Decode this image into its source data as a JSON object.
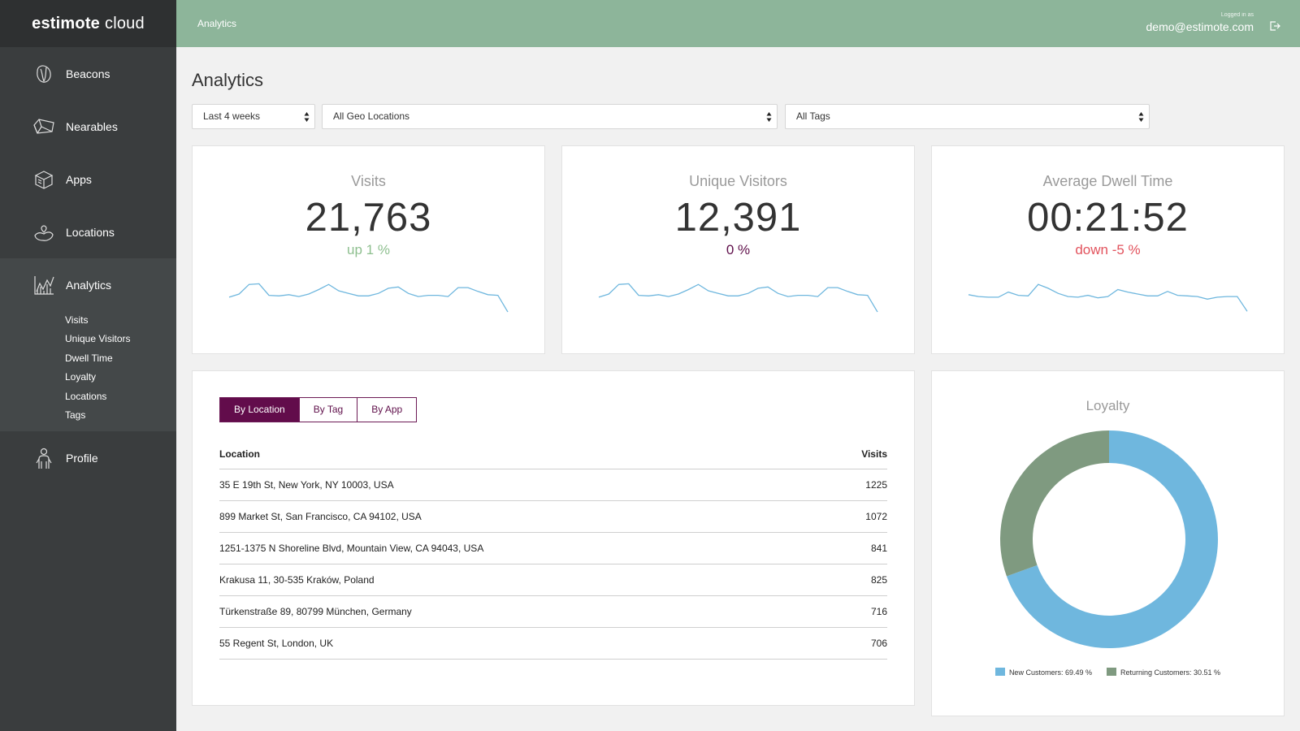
{
  "app": {
    "logo_bold": "estimote",
    "logo_rest": "cloud"
  },
  "sidebar": {
    "items": [
      {
        "label": "Beacons",
        "icon": "beacon-icon"
      },
      {
        "label": "Nearables",
        "icon": "nearable-icon"
      },
      {
        "label": "Apps",
        "icon": "apps-box-icon"
      },
      {
        "label": "Locations",
        "icon": "location-hand-icon"
      },
      {
        "label": "Analytics",
        "icon": "analytics-chart-icon"
      },
      {
        "label": "Profile",
        "icon": "profile-person-icon"
      }
    ],
    "analytics_sub": [
      "Visits",
      "Unique Visitors",
      "Dwell Time",
      "Loyalty",
      "Locations",
      "Tags"
    ]
  },
  "header": {
    "breadcrumb": "Analytics",
    "logged_in_label": "Logged in as",
    "email": "demo@estimote.com"
  },
  "page": {
    "title": "Analytics"
  },
  "filters": {
    "period": "Last 4 weeks",
    "geo": "All Geo Locations",
    "tags": "All Tags"
  },
  "stats": [
    {
      "title": "Visits",
      "value": "21,763",
      "change": "up 1 %",
      "change_color": "#8ebf8f",
      "trend": [
        58,
        63,
        78,
        79,
        61,
        60,
        62,
        59,
        63,
        70,
        78,
        68,
        64,
        60,
        60,
        64,
        72,
        74,
        64,
        59,
        61,
        61,
        59,
        73,
        73,
        67,
        62,
        61,
        35
      ]
    },
    {
      "title": "Unique Visitors",
      "value": "12,391",
      "change": "0 %",
      "change_color": "#5f0f4a",
      "trend": [
        58,
        63,
        78,
        79,
        61,
        60,
        62,
        59,
        63,
        70,
        78,
        68,
        64,
        60,
        60,
        64,
        72,
        74,
        64,
        59,
        61,
        61,
        59,
        73,
        73,
        67,
        62,
        61,
        35
      ]
    },
    {
      "title": "Average Dwell Time",
      "value": "00:21:52",
      "change": "down -5 %",
      "change_color": "#e2535d",
      "trend": [
        62,
        59,
        58,
        58,
        66,
        61,
        60,
        78,
        72,
        64,
        59,
        58,
        61,
        57,
        59,
        70,
        66,
        63,
        60,
        60,
        67,
        61,
        60,
        59,
        55,
        58,
        59,
        59,
        36
      ]
    }
  ],
  "table": {
    "tabs": [
      "By Location",
      "By Tag",
      "By App"
    ],
    "active_tab": 0,
    "columns": [
      "Location",
      "Visits"
    ],
    "rows": [
      [
        "35 E 19th St, New York, NY 10003, USA",
        "1225"
      ],
      [
        "899 Market St, San Francisco, CA 94102, USA",
        "1072"
      ],
      [
        "1251-1375 N Shoreline Blvd, Mountain View, CA 94043, USA",
        "841"
      ],
      [
        "Krakusa 11, 30-535 Kraków, Poland",
        "825"
      ],
      [
        "Türkenstraße 89, 80799 München, Germany",
        "716"
      ],
      [
        "55 Regent St, London, UK",
        "706"
      ]
    ]
  },
  "loyalty": {
    "title": "Loyalty",
    "legend": [
      "New Customers: 69.49 %",
      "Returning Customers: 30.51 %"
    ]
  },
  "chart_data": {
    "type": "pie",
    "title": "Loyalty",
    "categories": [
      "New Customers",
      "Returning Customers"
    ],
    "values": [
      69.49,
      30.51
    ],
    "colors": [
      "#6fb7de",
      "#7f9a80"
    ],
    "legend_position": "bottom"
  }
}
